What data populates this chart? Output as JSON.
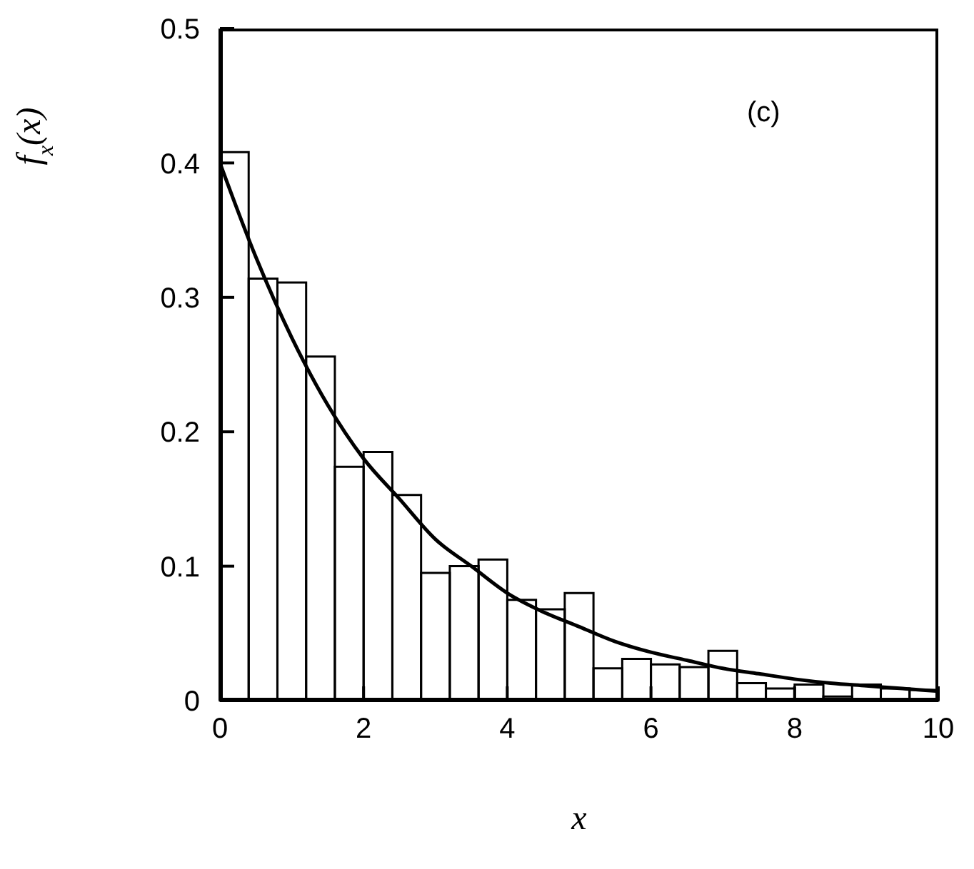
{
  "chart_data": {
    "type": "histogram",
    "xlabel": "x",
    "ylabel": "f$_{x}$(x)",
    "annotations": [
      "(c)"
    ],
    "color": "#000000",
    "bins": [
      0,
      0.4,
      0.8,
      1.2,
      1.6,
      2.0,
      2.4,
      2.8,
      3.2,
      3.6,
      4.0,
      4.4,
      4.8,
      5.2,
      5.6,
      6.0,
      6.4,
      6.8,
      7.2,
      7.6,
      8.0,
      8.4,
      8.8,
      9.2,
      9.6,
      10.0
    ],
    "values": [
      0.408,
      0.314,
      0.311,
      0.256,
      0.174,
      0.185,
      0.153,
      0.095,
      0.1,
      0.105,
      0.075,
      0.068,
      0.08,
      0.024,
      0.031,
      0.027,
      0.025,
      0.037,
      0.013,
      0.009,
      0.012,
      0.003,
      0.012,
      0.009,
      0.008
    ],
    "series": [
      {
        "type": "line",
        "color": "#000000",
        "x": [
          0,
          0.5,
          1,
          1.5,
          2,
          2.5,
          3,
          3.5,
          4,
          4.5,
          5,
          5.5,
          6,
          6.5,
          7,
          7.5,
          8,
          8.5,
          9,
          9.5,
          10
        ],
        "values": [
          0.4,
          0.33,
          0.27,
          0.22,
          0.18,
          0.15,
          0.12,
          0.1,
          0.08,
          0.066,
          0.055,
          0.044,
          0.036,
          0.03,
          0.024,
          0.02,
          0.016,
          0.013,
          0.011,
          0.009,
          0.007
        ]
      }
    ],
    "xlim": [
      0,
      10
    ],
    "xticks": [
      0,
      2,
      4,
      6,
      8,
      10
    ],
    "ylim": [
      0,
      0.5
    ],
    "yticks": [
      0,
      0.1,
      0.2,
      0.3,
      0.4,
      0.5
    ],
    "marker": "none",
    "line_style": "solid"
  }
}
